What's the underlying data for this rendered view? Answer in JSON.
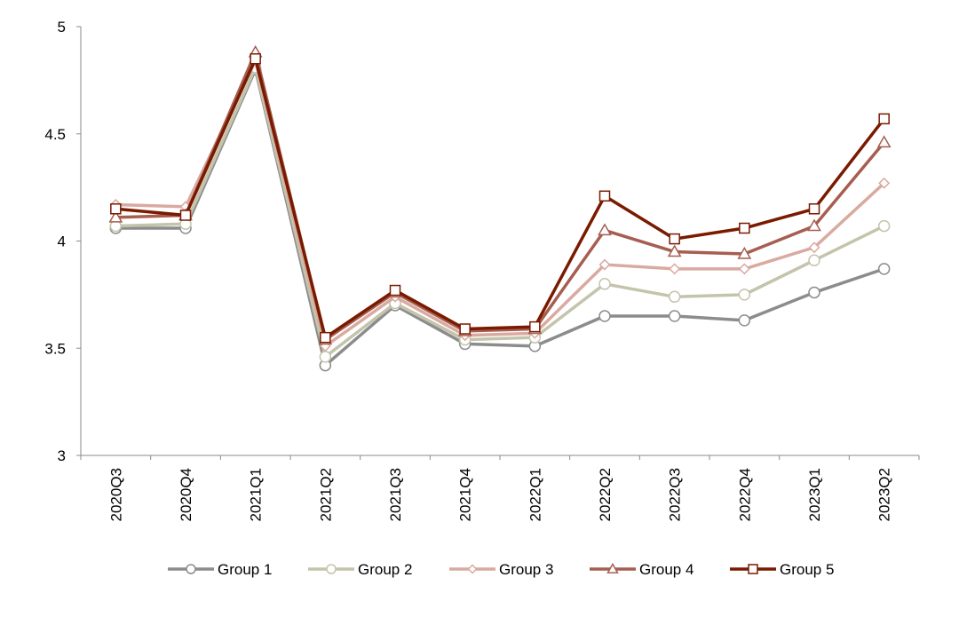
{
  "chart_data": {
    "type": "line",
    "title": "",
    "xlabel": "",
    "ylabel": "",
    "ylim": [
      3,
      5
    ],
    "yticks": [
      3,
      3.5,
      4,
      4.5,
      5
    ],
    "ytick_labels": [
      "3",
      "3.5",
      "4",
      "4.5",
      "5"
    ],
    "grid": false,
    "legend": "bottom",
    "categories": [
      "2020Q3",
      "2020Q4",
      "2021Q1",
      "2021Q2",
      "2021Q3",
      "2021Q4",
      "2022Q1",
      "2022Q2",
      "2022Q3",
      "2022Q4",
      "2023Q1",
      "2023Q2"
    ],
    "series": [
      {
        "name": "Group 1",
        "color": "#8c8c8c",
        "marker": "circle",
        "values": [
          4.06,
          4.06,
          4.8,
          3.42,
          3.7,
          3.52,
          3.51,
          3.65,
          3.65,
          3.63,
          3.76,
          3.87
        ]
      },
      {
        "name": "Group 2",
        "color": "#c4c4ac",
        "marker": "circle",
        "values": [
          4.07,
          4.08,
          4.81,
          3.46,
          3.71,
          3.54,
          3.55,
          3.8,
          3.74,
          3.75,
          3.91,
          4.07
        ]
      },
      {
        "name": "Group 3",
        "color": "#d9aaa0",
        "marker": "diamond",
        "values": [
          4.17,
          4.16,
          4.84,
          3.51,
          3.74,
          3.56,
          3.57,
          3.89,
          3.87,
          3.87,
          3.97,
          4.27
        ]
      },
      {
        "name": "Group 4",
        "color": "#a65e50",
        "marker": "triangle",
        "values": [
          4.11,
          4.12,
          4.88,
          3.54,
          3.76,
          3.58,
          3.59,
          4.05,
          3.95,
          3.94,
          4.07,
          4.46
        ]
      },
      {
        "name": "Group 5",
        "color": "#7a1a00",
        "marker": "square",
        "values": [
          4.15,
          4.12,
          4.85,
          3.55,
          3.77,
          3.59,
          3.6,
          4.21,
          4.01,
          4.06,
          4.15,
          4.57
        ]
      }
    ]
  }
}
